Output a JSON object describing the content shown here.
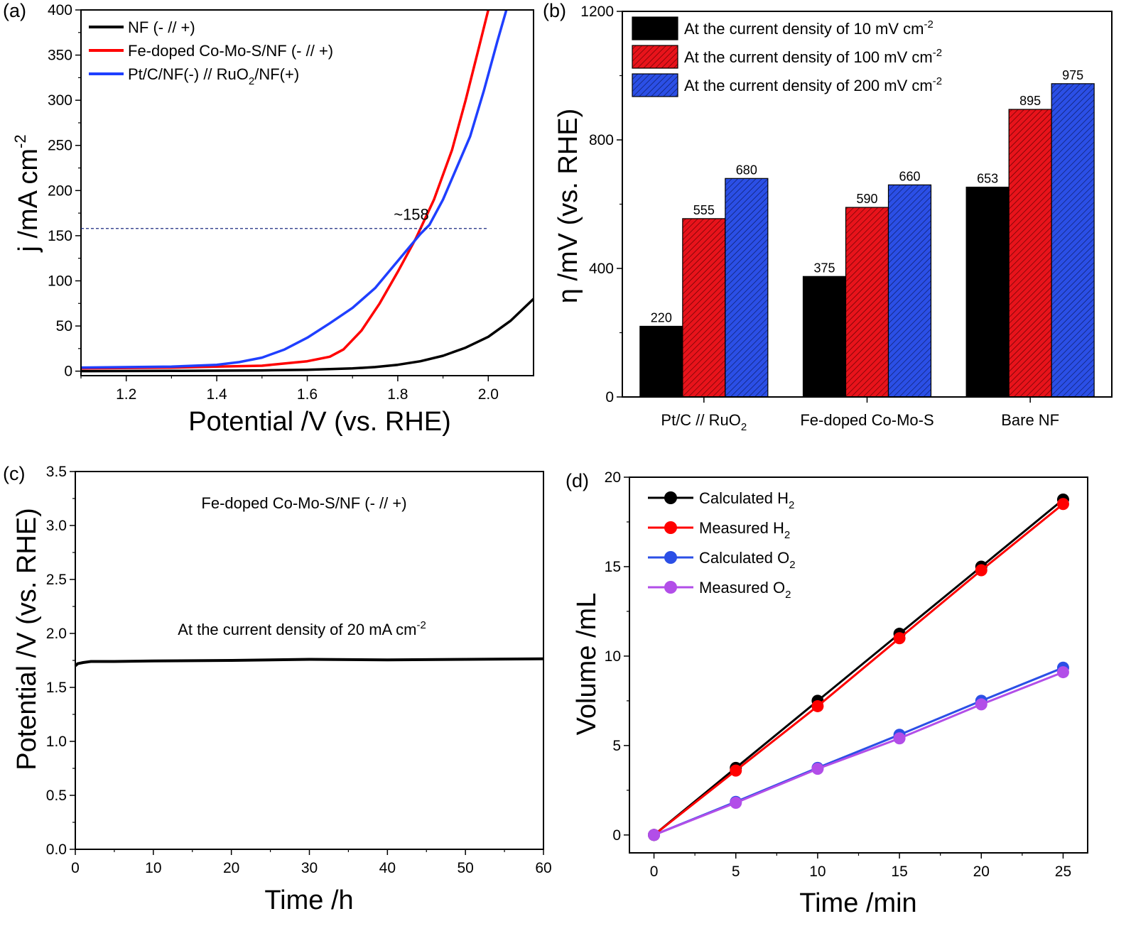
{
  "chart_data": [
    {
      "panel": "(a)",
      "type": "line",
      "xlabel": "Potential /V (vs. RHE)",
      "ylabel": "j /mA cm",
      "ylabel_sup": "-2",
      "xlim": [
        1.1,
        2.1
      ],
      "ylim": [
        -5,
        400
      ],
      "xticks": [
        1.2,
        1.4,
        1.6,
        1.8,
        2.0
      ],
      "xtick_labels": [
        "1.2",
        "1.4",
        "1.6",
        "1.8",
        "2.0"
      ],
      "yticks": [
        0,
        50,
        100,
        150,
        200,
        250,
        300,
        350,
        400
      ],
      "ytick_labels": [
        "0",
        "50",
        "100",
        "150",
        "200",
        "250",
        "300",
        "350",
        "400"
      ],
      "annotation": "~158",
      "annotation_value": 158,
      "series": [
        {
          "name": "NF (- // +)",
          "color": "#000000",
          "x": [
            1.1,
            1.3,
            1.5,
            1.6,
            1.7,
            1.75,
            1.8,
            1.85,
            1.9,
            1.95,
            2.0,
            2.05,
            2.1
          ],
          "y": [
            0,
            0.3,
            0.8,
            1.5,
            3,
            4.5,
            7,
            11,
            17,
            26,
            38,
            56,
            80
          ]
        },
        {
          "name": "Fe-doped Co-Mo-S/NF (- // +)",
          "color": "#ff0000",
          "x": [
            1.1,
            1.3,
            1.4,
            1.5,
            1.6,
            1.65,
            1.68,
            1.72,
            1.76,
            1.8,
            1.84,
            1.88,
            1.92,
            1.95,
            1.98,
            2.0
          ],
          "y": [
            3,
            4,
            5,
            6,
            11,
            16,
            24,
            45,
            75,
            110,
            147,
            190,
            245,
            300,
            360,
            400
          ]
        },
        {
          "name": "Pt/C/NF(-) // RuO",
          "name_sub": "2",
          "name_tail": "/NF(+)",
          "color": "#1f3fff",
          "x": [
            1.1,
            1.3,
            1.4,
            1.45,
            1.5,
            1.55,
            1.6,
            1.65,
            1.7,
            1.75,
            1.8,
            1.85,
            1.87,
            1.9,
            1.93,
            1.96,
            1.99,
            2.02,
            2.04
          ],
          "y": [
            4,
            5,
            7,
            10,
            15,
            24,
            37,
            53,
            70,
            92,
            122,
            152,
            162,
            190,
            225,
            260,
            310,
            365,
            400
          ]
        }
      ]
    },
    {
      "panel": "(b)",
      "type": "bar",
      "ylabel": "η /mV (vs. RHE)",
      "ylim": [
        0,
        1200
      ],
      "yticks": [
        0,
        400,
        800,
        1200
      ],
      "ytick_labels": [
        "0",
        "400",
        "800",
        "1200"
      ],
      "categories": [
        "Pt/C // RuO",
        "Fe-doped Co-Mo-S",
        "Bare NF"
      ],
      "category_sub": [
        "2",
        "",
        ""
      ],
      "series": [
        {
          "name": "At the current density of 10 mV cm",
          "sup": "-2",
          "color": "#000000",
          "hatch": false,
          "values": [
            220,
            375,
            653
          ],
          "value_labels": [
            "220",
            "375",
            "653"
          ]
        },
        {
          "name": "At the current density of 100 mV cm",
          "sup": "-2",
          "color": "#e8131b",
          "hatch": true,
          "values": [
            555,
            590,
            895
          ],
          "value_labels": [
            "555",
            "590",
            "895"
          ]
        },
        {
          "name": "At the current density of 200 mV cm",
          "sup": "-2",
          "color": "#2b4fe6",
          "hatch": true,
          "values": [
            680,
            660,
            975
          ],
          "value_labels": [
            "680",
            "660",
            "975"
          ]
        }
      ]
    },
    {
      "panel": "(c)",
      "type": "line",
      "xlabel": "Time /h",
      "ylabel": "Potential /V (vs. RHE)",
      "xlim": [
        0,
        60
      ],
      "ylim": [
        0,
        3.5
      ],
      "xticks": [
        0,
        10,
        20,
        30,
        40,
        50,
        60
      ],
      "xtick_labels": [
        "0",
        "10",
        "20",
        "30",
        "40",
        "50",
        "60"
      ],
      "yticks": [
        0,
        0.5,
        1.0,
        1.5,
        2.0,
        2.5,
        3.0,
        3.5
      ],
      "ytick_labels": [
        "0.0",
        "0.5",
        "1.0",
        "1.5",
        "2.0",
        "2.5",
        "3.0",
        "3.5"
      ],
      "annotation_top": "Fe-doped Co-Mo-S/NF (- // +)",
      "annotation_mid": "At the current density of 20 mA cm",
      "annotation_mid_sup": "-2",
      "series": [
        {
          "name": "Fe-doped Co-Mo-S/NF (- // +)",
          "color": "#000000",
          "x": [
            0,
            0.3,
            1,
            2,
            5,
            10,
            20,
            30,
            40,
            50,
            60
          ],
          "y": [
            1.7,
            1.72,
            1.73,
            1.74,
            1.74,
            1.745,
            1.75,
            1.76,
            1.755,
            1.76,
            1.765
          ]
        }
      ]
    },
    {
      "panel": "(d)",
      "type": "line",
      "xlabel": "Time /min",
      "ylabel": "Volume /mL",
      "xlim": [
        -1.5,
        26.5
      ],
      "ylim": [
        -1,
        20
      ],
      "xticks": [
        0,
        5,
        10,
        15,
        20,
        25
      ],
      "xtick_labels": [
        "0",
        "5",
        "10",
        "15",
        "20",
        "25"
      ],
      "yticks": [
        0,
        5,
        10,
        15,
        20
      ],
      "ytick_labels": [
        "0",
        "5",
        "10",
        "15",
        "20"
      ],
      "x": [
        0,
        5,
        10,
        15,
        20,
        25
      ],
      "series": [
        {
          "name": "Calculated H",
          "sub": "2",
          "color": "#000000",
          "values": [
            0,
            3.75,
            7.5,
            11.25,
            15.0,
            18.75
          ]
        },
        {
          "name": "Measured H",
          "sub": "2",
          "color": "#ff0000",
          "values": [
            0,
            3.6,
            7.2,
            11.0,
            14.8,
            18.5
          ]
        },
        {
          "name": "Calculated O",
          "sub": "2",
          "color": "#2b4fe6",
          "values": [
            0,
            1.85,
            3.75,
            5.6,
            7.5,
            9.35
          ]
        },
        {
          "name": "Measured O",
          "sub": "2",
          "color": "#b24ee8",
          "values": [
            0,
            1.8,
            3.7,
            5.4,
            7.3,
            9.1
          ]
        }
      ]
    }
  ]
}
